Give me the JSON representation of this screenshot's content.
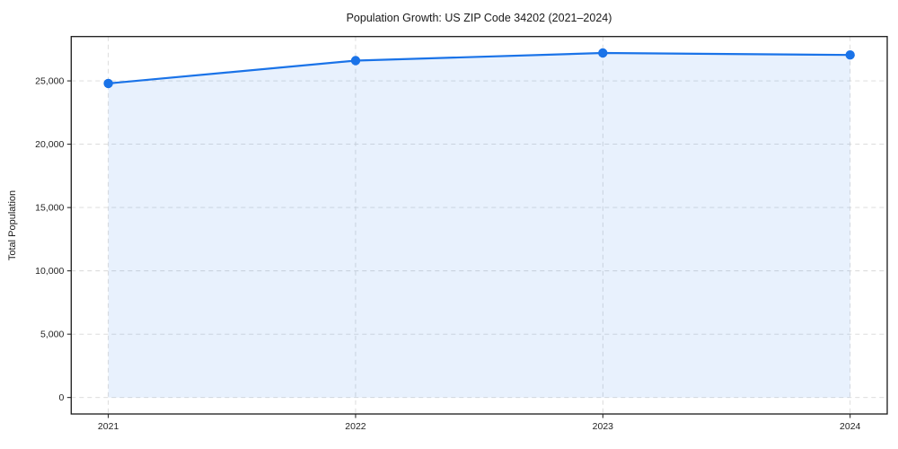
{
  "figure": {
    "title": "Population Growth: US ZIP Code 34202 (2021–2024)",
    "ylabel": "Total Population"
  },
  "chart_data": {
    "type": "area",
    "title": "Population Growth: US ZIP Code 34202 (2021–2024)",
    "xlabel": "",
    "ylabel": "Total Population",
    "categories": [
      "2021",
      "2022",
      "2023",
      "2024"
    ],
    "x": [
      2021,
      2022,
      2023,
      2024
    ],
    "series": [
      {
        "name": "Total Population",
        "values": [
          24800,
          26600,
          27200,
          27050
        ]
      }
    ],
    "yticks": [
      0,
      5000,
      10000,
      15000,
      20000,
      25000
    ],
    "ytick_labels": [
      "0",
      "5,000",
      "10,000",
      "15,000",
      "20,000",
      "25,000"
    ],
    "xtick_labels": [
      "2021",
      "2022",
      "2023",
      "2024"
    ],
    "ylim": [
      -1300,
      28500
    ],
    "xlim": [
      2020.85,
      2024.15
    ],
    "grid": true,
    "grid_style": "dashed",
    "legend": false,
    "marker": "circle",
    "colors": {
      "line": "#1a73e8",
      "marker": "#1a73e8",
      "fill": "rgba(26,115,232,0.10)",
      "grid": "#d8d8d8",
      "spine": "#1a1a1a",
      "text": "#1a1a1a"
    }
  }
}
